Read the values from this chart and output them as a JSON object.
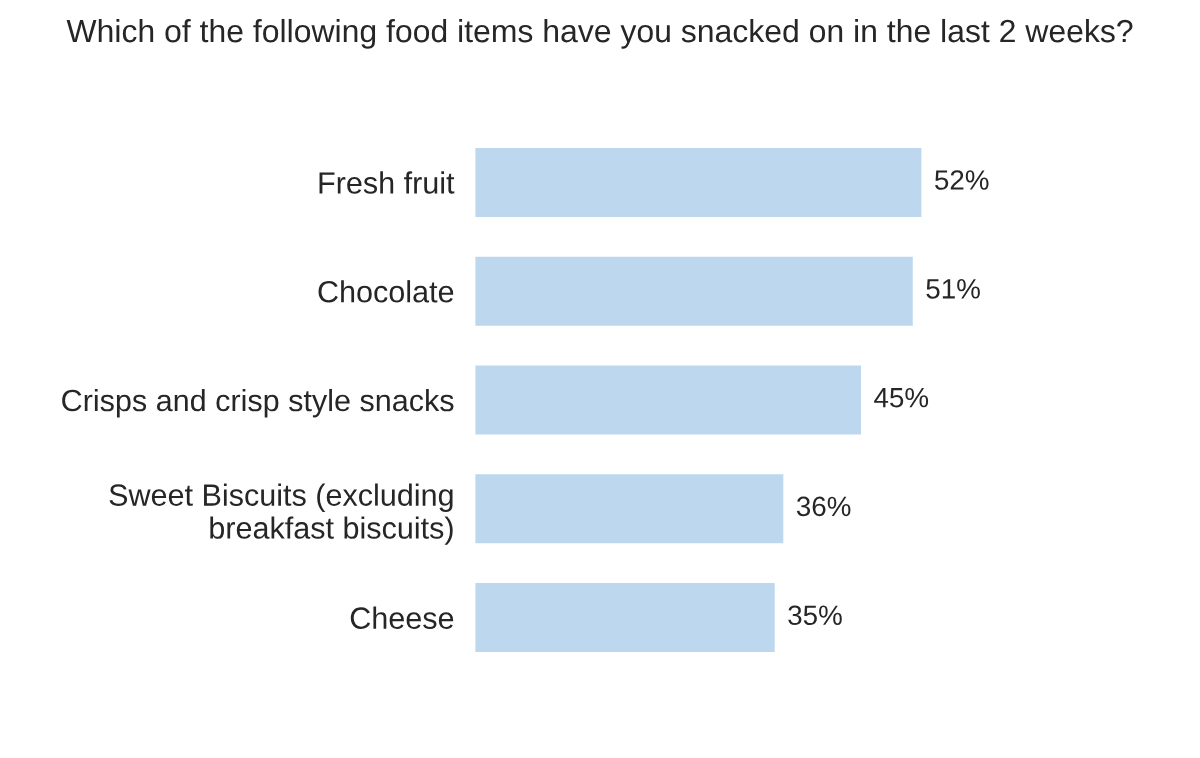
{
  "chart_data": {
    "type": "bar",
    "orientation": "horizontal",
    "title": "Which of the following food items have you snacked on in the last 2 weeks?",
    "categories": [
      "Fresh fruit",
      "Chocolate",
      "Crisps and crisp style snacks",
      "Sweet Biscuits (excluding\nbreakfast biscuits)",
      "Cheese"
    ],
    "values": [
      52,
      51,
      45,
      36,
      35
    ],
    "value_labels": [
      "52%",
      "51%",
      "45%",
      "36%",
      "35%"
    ],
    "color": "#bdd7ee",
    "grid": false,
    "legend": false
  }
}
